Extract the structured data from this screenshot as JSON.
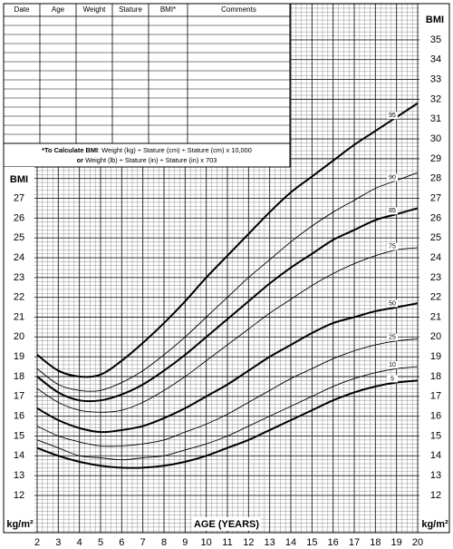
{
  "table": {
    "columns": [
      "Date",
      "Age",
      "Weight",
      "Stature",
      "BMI*",
      "Comments"
    ]
  },
  "formula": {
    "line1": [
      {
        "text": "*To Calculate BMI",
        "bold": true
      },
      {
        "text": ": Weight (kg) ÷ Stature (cm) ÷ Stature (cm) x 10,000",
        "bold": false
      }
    ],
    "line2": [
      {
        "text": "or",
        "bold": true
      },
      {
        "text": " Weight (lb) ÷ Stature (in) ÷ Stature (in) x 703",
        "bold": false
      }
    ]
  },
  "chart_data": {
    "type": "line",
    "y_label": "BMI",
    "y_unit": "kg/m²",
    "x_label": "AGE (YEARS)",
    "x": [
      2,
      3,
      4,
      5,
      6,
      7,
      8,
      9,
      10,
      11,
      12,
      13,
      14,
      15,
      16,
      17,
      18,
      19,
      20
    ],
    "xlim": [
      2,
      20
    ],
    "ylim": [
      11,
      36.8
    ],
    "xticks": [
      2,
      3,
      4,
      5,
      6,
      7,
      8,
      9,
      10,
      11,
      12,
      13,
      14,
      15,
      16,
      17,
      18,
      19,
      20
    ],
    "yticks": [
      12,
      13,
      14,
      15,
      16,
      17,
      18,
      19,
      20,
      21,
      22,
      23,
      24,
      25,
      26,
      27,
      28,
      29,
      30,
      31,
      32,
      33,
      34,
      35
    ],
    "grid": true,
    "series": [
      {
        "name": "5",
        "color": "#000000",
        "thick": true,
        "values": [
          14.4,
          14.0,
          13.7,
          13.5,
          13.4,
          13.4,
          13.5,
          13.7,
          14.0,
          14.4,
          14.8,
          15.3,
          15.8,
          16.3,
          16.8,
          17.2,
          17.5,
          17.7,
          17.8
        ]
      },
      {
        "name": "10",
        "color": "#000000",
        "thick": false,
        "values": [
          14.8,
          14.4,
          14.0,
          13.9,
          13.8,
          13.9,
          14.0,
          14.3,
          14.6,
          15.0,
          15.5,
          16.0,
          16.5,
          17.0,
          17.5,
          17.9,
          18.2,
          18.4,
          18.5
        ]
      },
      {
        "name": "25",
        "color": "#000000",
        "thick": false,
        "values": [
          15.5,
          15.0,
          14.7,
          14.5,
          14.5,
          14.6,
          14.8,
          15.2,
          15.6,
          16.1,
          16.7,
          17.3,
          17.9,
          18.4,
          18.9,
          19.3,
          19.6,
          19.8,
          19.9
        ]
      },
      {
        "name": "50",
        "color": "#000000",
        "thick": true,
        "values": [
          16.4,
          15.8,
          15.4,
          15.2,
          15.3,
          15.5,
          15.9,
          16.4,
          17.0,
          17.6,
          18.3,
          19.0,
          19.6,
          20.2,
          20.7,
          21.0,
          21.3,
          21.5,
          21.7
        ]
      },
      {
        "name": "75",
        "color": "#000000",
        "thick": false,
        "values": [
          17.4,
          16.7,
          16.3,
          16.2,
          16.3,
          16.7,
          17.3,
          18.0,
          18.8,
          19.6,
          20.4,
          21.2,
          21.9,
          22.6,
          23.2,
          23.7,
          24.1,
          24.4,
          24.5
        ]
      },
      {
        "name": "85",
        "color": "#000000",
        "thick": true,
        "values": [
          18.0,
          17.2,
          16.8,
          16.8,
          17.1,
          17.6,
          18.3,
          19.1,
          20.0,
          20.9,
          21.8,
          22.7,
          23.5,
          24.2,
          24.9,
          25.4,
          25.9,
          26.2,
          26.5
        ]
      },
      {
        "name": "90",
        "color": "#000000",
        "thick": false,
        "values": [
          18.4,
          17.6,
          17.3,
          17.3,
          17.7,
          18.3,
          19.1,
          20.0,
          21.0,
          22.0,
          23.0,
          23.9,
          24.8,
          25.6,
          26.3,
          26.9,
          27.5,
          27.9,
          28.3
        ]
      },
      {
        "name": "95",
        "color": "#000000",
        "thick": true,
        "values": [
          19.1,
          18.3,
          18.0,
          18.1,
          18.8,
          19.7,
          20.7,
          21.8,
          23.0,
          24.1,
          25.2,
          26.3,
          27.3,
          28.1,
          28.9,
          29.7,
          30.4,
          31.1,
          31.8
        ]
      }
    ]
  }
}
